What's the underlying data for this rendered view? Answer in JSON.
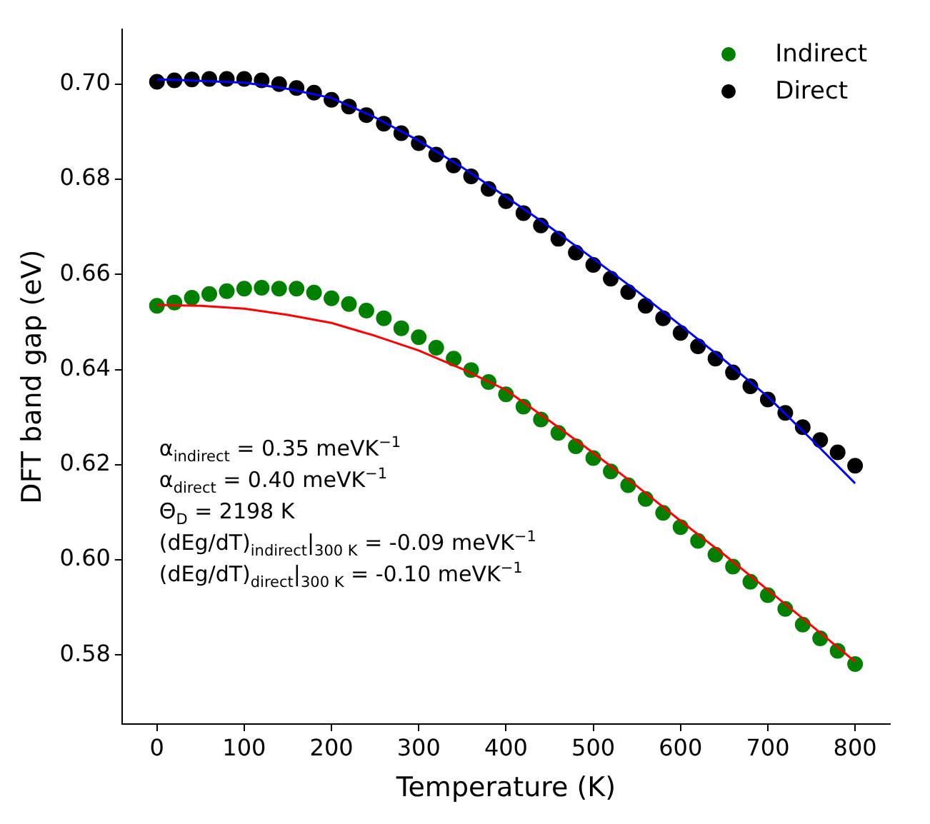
{
  "chart_data": {
    "type": "scatter",
    "xlabel": "Temperature (K)",
    "ylabel": "DFT band gap (eV)",
    "xlim": [
      -40,
      840
    ],
    "xticks": [
      0,
      100,
      200,
      300,
      400,
      500,
      600,
      700,
      800
    ],
    "ylim": [
      0.5655,
      0.7115
    ],
    "yticks": [
      0.58,
      {
        "value": 0.6,
        "label": "0.60"
      },
      0.62,
      0.64,
      0.66,
      0.68,
      {
        "value": 0.7,
        "label": "0.70"
      }
    ],
    "grid": false,
    "legend": "top right",
    "x": [
      0,
      20,
      40,
      60,
      80,
      100,
      120,
      140,
      160,
      180,
      200,
      220,
      240,
      260,
      280,
      300,
      320,
      340,
      360,
      380,
      400,
      420,
      440,
      460,
      480,
      500,
      520,
      540,
      560,
      580,
      600,
      620,
      640,
      660,
      680,
      700,
      720,
      740,
      760,
      780,
      800
    ],
    "series": [
      {
        "name": "Indirect",
        "marker": "circle",
        "color": "#008000",
        "values": [
          0.6534,
          0.6541,
          0.6551,
          0.6559,
          0.6565,
          0.657,
          0.6572,
          0.657,
          0.657,
          0.6562,
          0.655,
          0.6538,
          0.6524,
          0.6508,
          0.6487,
          0.6468,
          0.6446,
          0.6423,
          0.6399,
          0.6374,
          0.6348,
          0.6322,
          0.6295,
          0.6267,
          0.6239,
          0.6214,
          0.6186,
          0.6157,
          0.6128,
          0.6099,
          0.6069,
          0.604,
          0.6011,
          0.5986,
          0.5954,
          0.5926,
          0.5897,
          0.5864,
          0.5835,
          0.5809,
          0.5781
        ]
      },
      {
        "name": "Direct",
        "marker": "circle",
        "color": "#000000",
        "values": [
          0.7005,
          0.7008,
          0.701,
          0.7011,
          0.7011,
          0.7011,
          0.7008,
          0.7,
          0.6992,
          0.6982,
          0.6967,
          0.6953,
          0.6935,
          0.6917,
          0.6897,
          0.6876,
          0.6852,
          0.6829,
          0.6806,
          0.678,
          0.6754,
          0.6729,
          0.6703,
          0.6675,
          0.6646,
          0.662,
          0.6591,
          0.6563,
          0.6534,
          0.6508,
          0.6477,
          0.6449,
          0.6423,
          0.6394,
          0.6365,
          0.6337,
          0.6309,
          0.6279,
          0.6252,
          0.6226,
          0.6198
        ]
      },
      {
        "type": "line",
        "marker": "none",
        "color": "#0000ff",
        "x": [
          0,
          50,
          100,
          150,
          200,
          250,
          300,
          350,
          400,
          450,
          500,
          550,
          600,
          650,
          700,
          750,
          800
        ],
        "values": [
          0.701,
          0.7007,
          0.7003,
          0.699,
          0.6971,
          0.693,
          0.6881,
          0.6825,
          0.6763,
          0.67,
          0.6633,
          0.6565,
          0.6493,
          0.642,
          0.6343,
          0.6253,
          0.6161
        ]
      },
      {
        "type": "line",
        "marker": "none",
        "color": "#ff0000",
        "x": [
          0,
          50,
          100,
          150,
          200,
          250,
          300,
          350,
          400,
          450,
          500,
          550,
          600,
          650,
          700,
          750,
          800
        ],
        "values": [
          0.6536,
          0.6534,
          0.6528,
          0.6515,
          0.6498,
          0.6471,
          0.644,
          0.6401,
          0.6357,
          0.6292,
          0.6225,
          0.6155,
          0.6082,
          0.6011,
          0.5937,
          0.5862,
          0.5786
        ]
      }
    ],
    "annotations": [
      "α$_{indirect}$ = 0.35 meVK$^{−1}$",
      "α$_{direct}$ = 0.40 meVK$^{−1}$",
      "Θ$_{D}$ = 2198 K",
      "(dEg/dT)$_{indirect}$|$_{300 K}$ = -0.09 meVK$^{−1}$",
      "(dEg/dT)$_{direct}$|$_{300 K}$ = -0.10 meVK$^{−1}$"
    ]
  }
}
